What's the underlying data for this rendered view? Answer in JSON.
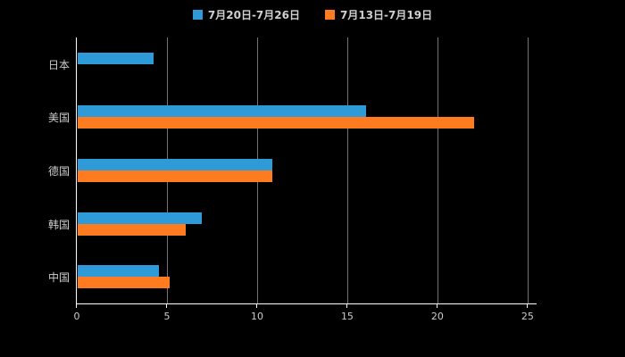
{
  "chart_data": {
    "type": "bar",
    "orientation": "horizontal",
    "title": "",
    "categories": [
      "日本",
      "美国",
      "德国",
      "韩国",
      "中国"
    ],
    "series": [
      {
        "name": "7月20日-7月26日",
        "color": "#2E9AD8",
        "values": [
          4.2,
          16,
          10.8,
          6.9,
          4.5
        ]
      },
      {
        "name": "7月13日-7月19日",
        "color": "#FF7B20",
        "values": [
          0,
          22,
          10.8,
          6,
          5.1
        ]
      }
    ],
    "xticks": [
      0,
      5,
      10,
      15,
      20,
      25
    ],
    "xlim": [
      0,
      25.5
    ],
    "xlabel": "",
    "ylabel": "",
    "legend_position": "top-center",
    "grid": true,
    "background_color": "#000000",
    "axis_color": "#ffffff",
    "text_color": "#cccccc"
  }
}
